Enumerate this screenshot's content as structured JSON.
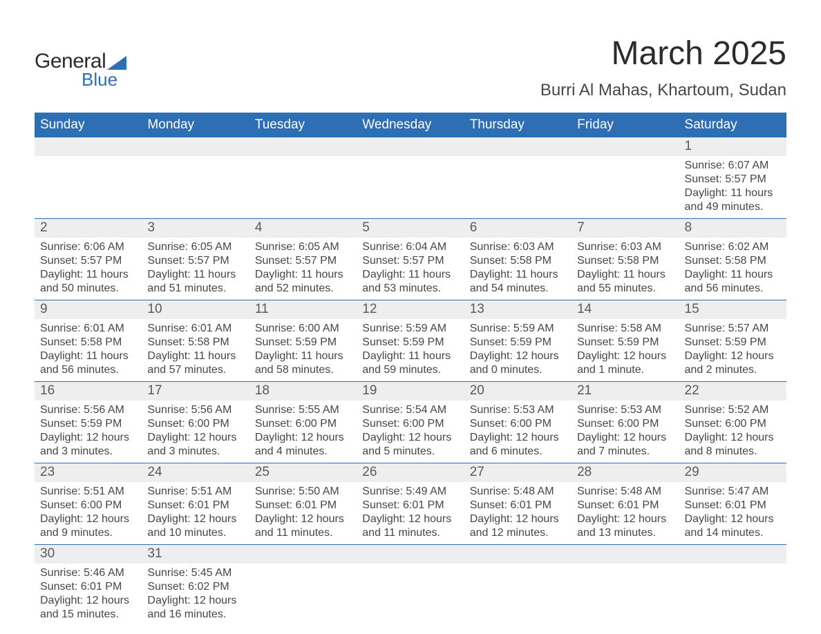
{
  "logo": {
    "word1": "General",
    "word2": "Blue"
  },
  "title": "March 2025",
  "subtitle": "Burri Al Mahas, Khartoum, Sudan",
  "colors": {
    "header_bg": "#2e6eb5",
    "header_text": "#ffffff",
    "daynum_bg": "#eeeeee",
    "row_border": "#2e6eb5",
    "body_text": "#464646",
    "title_text": "#2b2b2b",
    "page_bg": "#ffffff"
  },
  "fonts": {
    "family": "Arial",
    "title_size_pt": 36,
    "subtitle_size_pt": 18,
    "header_size_pt": 14,
    "daynum_size_pt": 14,
    "body_size_pt": 12
  },
  "layout": {
    "columns": 7,
    "rows": 6,
    "start_weekday": "Sunday",
    "first_day_column_index": 6
  },
  "weekdays": [
    "Sunday",
    "Monday",
    "Tuesday",
    "Wednesday",
    "Thursday",
    "Friday",
    "Saturday"
  ],
  "days": [
    {
      "n": 1,
      "sunrise": "6:07 AM",
      "sunset": "5:57 PM",
      "daylight": "11 hours and 49 minutes."
    },
    {
      "n": 2,
      "sunrise": "6:06 AM",
      "sunset": "5:57 PM",
      "daylight": "11 hours and 50 minutes."
    },
    {
      "n": 3,
      "sunrise": "6:05 AM",
      "sunset": "5:57 PM",
      "daylight": "11 hours and 51 minutes."
    },
    {
      "n": 4,
      "sunrise": "6:05 AM",
      "sunset": "5:57 PM",
      "daylight": "11 hours and 52 minutes."
    },
    {
      "n": 5,
      "sunrise": "6:04 AM",
      "sunset": "5:57 PM",
      "daylight": "11 hours and 53 minutes."
    },
    {
      "n": 6,
      "sunrise": "6:03 AM",
      "sunset": "5:58 PM",
      "daylight": "11 hours and 54 minutes."
    },
    {
      "n": 7,
      "sunrise": "6:03 AM",
      "sunset": "5:58 PM",
      "daylight": "11 hours and 55 minutes."
    },
    {
      "n": 8,
      "sunrise": "6:02 AM",
      "sunset": "5:58 PM",
      "daylight": "11 hours and 56 minutes."
    },
    {
      "n": 9,
      "sunrise": "6:01 AM",
      "sunset": "5:58 PM",
      "daylight": "11 hours and 56 minutes."
    },
    {
      "n": 10,
      "sunrise": "6:01 AM",
      "sunset": "5:58 PM",
      "daylight": "11 hours and 57 minutes."
    },
    {
      "n": 11,
      "sunrise": "6:00 AM",
      "sunset": "5:59 PM",
      "daylight": "11 hours and 58 minutes."
    },
    {
      "n": 12,
      "sunrise": "5:59 AM",
      "sunset": "5:59 PM",
      "daylight": "11 hours and 59 minutes."
    },
    {
      "n": 13,
      "sunrise": "5:59 AM",
      "sunset": "5:59 PM",
      "daylight": "12 hours and 0 minutes."
    },
    {
      "n": 14,
      "sunrise": "5:58 AM",
      "sunset": "5:59 PM",
      "daylight": "12 hours and 1 minute."
    },
    {
      "n": 15,
      "sunrise": "5:57 AM",
      "sunset": "5:59 PM",
      "daylight": "12 hours and 2 minutes."
    },
    {
      "n": 16,
      "sunrise": "5:56 AM",
      "sunset": "5:59 PM",
      "daylight": "12 hours and 3 minutes."
    },
    {
      "n": 17,
      "sunrise": "5:56 AM",
      "sunset": "6:00 PM",
      "daylight": "12 hours and 3 minutes."
    },
    {
      "n": 18,
      "sunrise": "5:55 AM",
      "sunset": "6:00 PM",
      "daylight": "12 hours and 4 minutes."
    },
    {
      "n": 19,
      "sunrise": "5:54 AM",
      "sunset": "6:00 PM",
      "daylight": "12 hours and 5 minutes."
    },
    {
      "n": 20,
      "sunrise": "5:53 AM",
      "sunset": "6:00 PM",
      "daylight": "12 hours and 6 minutes."
    },
    {
      "n": 21,
      "sunrise": "5:53 AM",
      "sunset": "6:00 PM",
      "daylight": "12 hours and 7 minutes."
    },
    {
      "n": 22,
      "sunrise": "5:52 AM",
      "sunset": "6:00 PM",
      "daylight": "12 hours and 8 minutes."
    },
    {
      "n": 23,
      "sunrise": "5:51 AM",
      "sunset": "6:00 PM",
      "daylight": "12 hours and 9 minutes."
    },
    {
      "n": 24,
      "sunrise": "5:51 AM",
      "sunset": "6:01 PM",
      "daylight": "12 hours and 10 minutes."
    },
    {
      "n": 25,
      "sunrise": "5:50 AM",
      "sunset": "6:01 PM",
      "daylight": "12 hours and 11 minutes."
    },
    {
      "n": 26,
      "sunrise": "5:49 AM",
      "sunset": "6:01 PM",
      "daylight": "12 hours and 11 minutes."
    },
    {
      "n": 27,
      "sunrise": "5:48 AM",
      "sunset": "6:01 PM",
      "daylight": "12 hours and 12 minutes."
    },
    {
      "n": 28,
      "sunrise": "5:48 AM",
      "sunset": "6:01 PM",
      "daylight": "12 hours and 13 minutes."
    },
    {
      "n": 29,
      "sunrise": "5:47 AM",
      "sunset": "6:01 PM",
      "daylight": "12 hours and 14 minutes."
    },
    {
      "n": 30,
      "sunrise": "5:46 AM",
      "sunset": "6:01 PM",
      "daylight": "12 hours and 15 minutes."
    },
    {
      "n": 31,
      "sunrise": "5:45 AM",
      "sunset": "6:02 PM",
      "daylight": "12 hours and 16 minutes."
    }
  ],
  "labels": {
    "sunrise": "Sunrise:",
    "sunset": "Sunset:",
    "daylight": "Daylight:"
  }
}
